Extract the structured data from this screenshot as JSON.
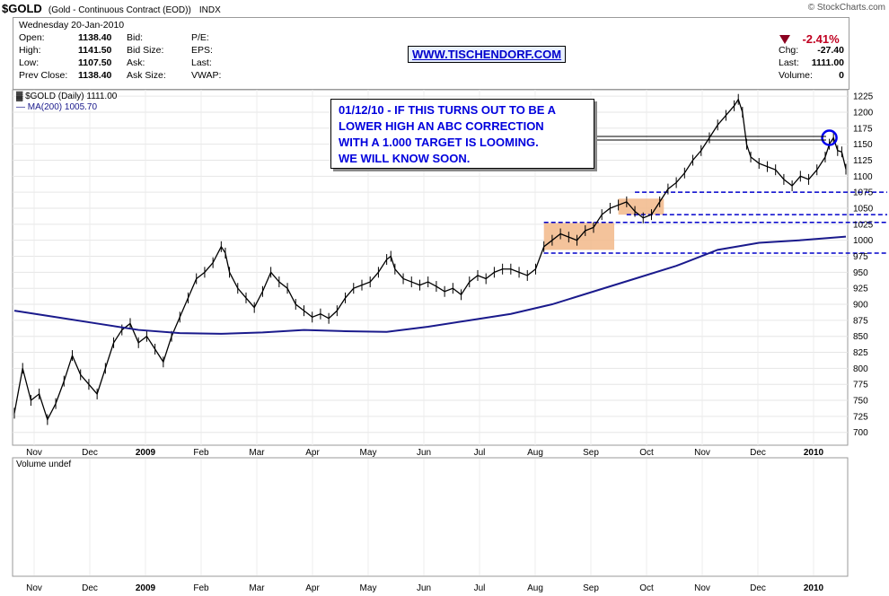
{
  "header": {
    "symbol": "$GOLD",
    "subtitle": "(Gold - Continuous Contract (EOD))",
    "exchange": "INDX",
    "copyright": "© StockCharts.com",
    "date": "Wednesday  20-Jan-2010",
    "stats_left": [
      {
        "label": "Open:",
        "value": "1138.40"
      },
      {
        "label": "High:",
        "value": "1141.50"
      },
      {
        "label": "Low:",
        "value": "1107.50"
      },
      {
        "label": "Prev Close:",
        "value": "1138.40"
      }
    ],
    "stats_mid": [
      "Bid:",
      "Bid Size:",
      "Ask:",
      "Ask Size:"
    ],
    "stats_mid2": [
      "P/E:",
      "EPS:",
      "Last:",
      "VWAP:"
    ],
    "url": "WWW.TISCHENDORF.COM",
    "change_pct": "-2.41%",
    "stats_right": [
      {
        "label": "Chg:",
        "value": "-27.40"
      },
      {
        "label": "Last:",
        "value": "1111.00"
      },
      {
        "label": "Volume:",
        "value": "0"
      }
    ],
    "down_color": "#8b0020"
  },
  "annotation": {
    "lines": [
      "01/12/10 - IF THIS TURNS OUT TO BE A",
      "LOWER HIGH AN ABC CORRECTION",
      "WITH A 1.000 TARGET IS LOOMING.",
      "WE WILL KNOW SOON."
    ],
    "color": "#0000dd"
  },
  "chart_data": {
    "type": "line",
    "legend": [
      "$GOLD (Daily) 1111.00",
      "MA(200) 1005.70"
    ],
    "volume_label": "Volume undef",
    "ylim": [
      680,
      1235
    ],
    "y_ticks": [
      700,
      725,
      750,
      775,
      800,
      825,
      850,
      875,
      900,
      925,
      950,
      975,
      1000,
      1025,
      1050,
      1075,
      1100,
      1125,
      1150,
      1175,
      1200,
      1225
    ],
    "x_labels": [
      "Nov",
      "Dec",
      "2009",
      "Feb",
      "Mar",
      "Apr",
      "May",
      "Jun",
      "Jul",
      "Aug",
      "Sep",
      "Oct",
      "Nov",
      "Dec",
      "2010"
    ],
    "x_labels_bold": [
      "2009",
      "2010"
    ],
    "series": [
      {
        "name": "$GOLD (Daily)",
        "color": "#000000",
        "points": [
          [
            0,
            730
          ],
          [
            2,
            800
          ],
          [
            4,
            750
          ],
          [
            6,
            760
          ],
          [
            8,
            720
          ],
          [
            10,
            745
          ],
          [
            12,
            780
          ],
          [
            14,
            820
          ],
          [
            16,
            790
          ],
          [
            18,
            775
          ],
          [
            20,
            760
          ],
          [
            22,
            800
          ],
          [
            24,
            840
          ],
          [
            26,
            860
          ],
          [
            28,
            870
          ],
          [
            30,
            840
          ],
          [
            32,
            850
          ],
          [
            34,
            830
          ],
          [
            36,
            810
          ],
          [
            38,
            850
          ],
          [
            40,
            880
          ],
          [
            42,
            910
          ],
          [
            44,
            940
          ],
          [
            46,
            950
          ],
          [
            48,
            965
          ],
          [
            50,
            990
          ],
          [
            51,
            980
          ],
          [
            52,
            950
          ],
          [
            54,
            925
          ],
          [
            56,
            910
          ],
          [
            58,
            895
          ],
          [
            60,
            920
          ],
          [
            62,
            950
          ],
          [
            64,
            935
          ],
          [
            66,
            925
          ],
          [
            68,
            900
          ],
          [
            70,
            890
          ],
          [
            72,
            880
          ],
          [
            74,
            885
          ],
          [
            76,
            878
          ],
          [
            78,
            890
          ],
          [
            80,
            910
          ],
          [
            82,
            925
          ],
          [
            84,
            930
          ],
          [
            86,
            935
          ],
          [
            88,
            950
          ],
          [
            90,
            970
          ],
          [
            91,
            975
          ],
          [
            92,
            955
          ],
          [
            94,
            940
          ],
          [
            96,
            935
          ],
          [
            98,
            930
          ],
          [
            100,
            935
          ],
          [
            102,
            928
          ],
          [
            104,
            920
          ],
          [
            106,
            925
          ],
          [
            108,
            915
          ],
          [
            110,
            935
          ],
          [
            112,
            945
          ],
          [
            114,
            940
          ],
          [
            116,
            950
          ],
          [
            118,
            955
          ],
          [
            120,
            955
          ],
          [
            122,
            950
          ],
          [
            124,
            945
          ],
          [
            126,
            955
          ],
          [
            128,
            990
          ],
          [
            130,
            1000
          ],
          [
            132,
            1010
          ],
          [
            134,
            1005
          ],
          [
            136,
            1000
          ],
          [
            138,
            1015
          ],
          [
            140,
            1020
          ],
          [
            142,
            1040
          ],
          [
            144,
            1050
          ],
          [
            146,
            1055
          ],
          [
            148,
            1060
          ],
          [
            150,
            1045
          ],
          [
            152,
            1035
          ],
          [
            154,
            1040
          ],
          [
            156,
            1060
          ],
          [
            158,
            1080
          ],
          [
            160,
            1090
          ],
          [
            162,
            1105
          ],
          [
            164,
            1125
          ],
          [
            166,
            1140
          ],
          [
            168,
            1160
          ],
          [
            170,
            1180
          ],
          [
            172,
            1195
          ],
          [
            174,
            1210
          ],
          [
            175,
            1220
          ],
          [
            176,
            1200
          ],
          [
            177,
            1150
          ],
          [
            178,
            1130
          ],
          [
            180,
            1120
          ],
          [
            182,
            1115
          ],
          [
            184,
            1110
          ],
          [
            186,
            1095
          ],
          [
            188,
            1085
          ],
          [
            190,
            1100
          ],
          [
            192,
            1095
          ],
          [
            194,
            1110
          ],
          [
            196,
            1130
          ],
          [
            197,
            1150
          ],
          [
            198,
            1160
          ],
          [
            199,
            1140
          ],
          [
            200,
            1138
          ],
          [
            201,
            1111
          ]
        ]
      },
      {
        "name": "MA(200)",
        "color": "#1a1a8c",
        "points": [
          [
            0,
            890
          ],
          [
            10,
            880
          ],
          [
            20,
            870
          ],
          [
            30,
            860
          ],
          [
            40,
            855
          ],
          [
            50,
            854
          ],
          [
            60,
            856
          ],
          [
            70,
            860
          ],
          [
            80,
            858
          ],
          [
            90,
            857
          ],
          [
            100,
            865
          ],
          [
            110,
            875
          ],
          [
            120,
            885
          ],
          [
            130,
            900
          ],
          [
            140,
            920
          ],
          [
            150,
            940
          ],
          [
            160,
            960
          ],
          [
            170,
            985
          ],
          [
            180,
            996
          ],
          [
            190,
            1000
          ],
          [
            201,
            1005.7
          ]
        ]
      }
    ],
    "support_lines": [
      1075,
      1040,
      1028,
      980
    ],
    "shaded_ranges": [
      {
        "x_start": 128,
        "x_end": 145,
        "y_low": 985,
        "y_high": 1027
      },
      {
        "x_start": 146,
        "x_end": 157,
        "y_low": 1040,
        "y_high": 1065
      }
    ],
    "highlight_circle": {
      "x": 197,
      "y": 1160
    }
  }
}
